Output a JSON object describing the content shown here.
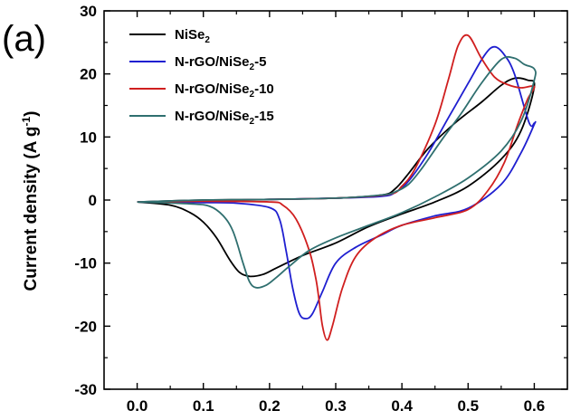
{
  "chart_data": {
    "type": "line",
    "panel_label": "(a)",
    "xlabel": "",
    "ylabel": {
      "main": "Current density (A g",
      "superscript": "-1",
      "close": ")"
    },
    "xlim": [
      -0.05,
      0.65
    ],
    "ylim": [
      -30,
      30
    ],
    "x_ticks": [
      "0.0",
      "0.1",
      "0.2",
      "0.3",
      "0.4",
      "0.5",
      "0.6"
    ],
    "x_tick_values": [
      0.0,
      0.1,
      0.2,
      0.3,
      0.4,
      0.5,
      0.6
    ],
    "y_ticks": [
      "-30",
      "-20",
      "-10",
      "0",
      "10",
      "20",
      "30"
    ],
    "y_tick_values": [
      -30,
      -20,
      -10,
      0,
      10,
      20,
      30
    ],
    "grid": false,
    "legend_position": "top-left",
    "series": [
      {
        "name": "NiSe2",
        "legend": {
          "base": "NiSe",
          "sub": "2",
          "suffix": ""
        },
        "color": "#000000",
        "points": [
          [
            0,
            -0.3
          ],
          [
            0.05,
            -0.8
          ],
          [
            0.08,
            -2
          ],
          [
            0.1,
            -3.5
          ],
          [
            0.12,
            -6
          ],
          [
            0.14,
            -9.5
          ],
          [
            0.155,
            -11.5
          ],
          [
            0.17,
            -12.1
          ],
          [
            0.19,
            -11.8
          ],
          [
            0.21,
            -10.8
          ],
          [
            0.25,
            -8.8
          ],
          [
            0.3,
            -6.8
          ],
          [
            0.35,
            -4.2
          ],
          [
            0.4,
            -2.2
          ],
          [
            0.45,
            -0.3
          ],
          [
            0.5,
            2.2
          ],
          [
            0.55,
            6.5
          ],
          [
            0.58,
            11
          ],
          [
            0.6,
            18
          ],
          [
            0.59,
            19
          ],
          [
            0.57,
            19.3
          ],
          [
            0.55,
            18.2
          ],
          [
            0.52,
            15.5
          ],
          [
            0.48,
            12.2
          ],
          [
            0.44,
            8.2
          ],
          [
            0.41,
            4.2
          ],
          [
            0.39,
            1.8
          ],
          [
            0.37,
            0.8
          ],
          [
            0.3,
            0.3
          ],
          [
            0.2,
            0.1
          ],
          [
            0.1,
            0
          ],
          [
            0,
            -0.3
          ]
        ]
      },
      {
        "name": "N-rGO/NiSe2-5",
        "legend": {
          "base": "N-rGO/NiSe",
          "sub": "2",
          "suffix": "-5"
        },
        "color": "#1f1fd0",
        "points": [
          [
            0,
            -0.3
          ],
          [
            0.1,
            -0.4
          ],
          [
            0.15,
            -0.5
          ],
          [
            0.2,
            -1.2
          ],
          [
            0.215,
            -3
          ],
          [
            0.225,
            -8
          ],
          [
            0.235,
            -14
          ],
          [
            0.245,
            -18
          ],
          [
            0.255,
            -18.8
          ],
          [
            0.265,
            -18
          ],
          [
            0.28,
            -14.5
          ],
          [
            0.3,
            -10
          ],
          [
            0.33,
            -7.5
          ],
          [
            0.37,
            -5.5
          ],
          [
            0.4,
            -4
          ],
          [
            0.45,
            -2.5
          ],
          [
            0.5,
            -1.3
          ],
          [
            0.55,
            2.5
          ],
          [
            0.58,
            7.5
          ],
          [
            0.6,
            12
          ],
          [
            0.6,
            12.2
          ],
          [
            0.592,
            12.3
          ],
          [
            0.57,
            20
          ],
          [
            0.555,
            23
          ],
          [
            0.54,
            24.3
          ],
          [
            0.525,
            23
          ],
          [
            0.5,
            18.5
          ],
          [
            0.47,
            13
          ],
          [
            0.44,
            7.5
          ],
          [
            0.41,
            3
          ],
          [
            0.39,
            1.2
          ],
          [
            0.37,
            0.6
          ],
          [
            0.3,
            0.3
          ],
          [
            0.2,
            0.1
          ],
          [
            0.1,
            -0.1
          ],
          [
            0,
            -0.3
          ]
        ]
      },
      {
        "name": "N-rGO/NiSe2-10",
        "legend": {
          "base": "N-rGO/NiSe",
          "sub": "2",
          "suffix": "-10"
        },
        "color": "#d01f1f",
        "points": [
          [
            0,
            -0.3
          ],
          [
            0.1,
            -0.2
          ],
          [
            0.2,
            -0.3
          ],
          [
            0.22,
            -0.8
          ],
          [
            0.24,
            -3
          ],
          [
            0.26,
            -8
          ],
          [
            0.27,
            -12.5
          ],
          [
            0.275,
            -16
          ],
          [
            0.28,
            -20
          ],
          [
            0.287,
            -22.2
          ],
          [
            0.295,
            -20
          ],
          [
            0.31,
            -14
          ],
          [
            0.33,
            -9
          ],
          [
            0.36,
            -6
          ],
          [
            0.4,
            -4
          ],
          [
            0.45,
            -2.8
          ],
          [
            0.5,
            -1.5
          ],
          [
            0.53,
            1.5
          ],
          [
            0.555,
            6
          ],
          [
            0.575,
            12
          ],
          [
            0.59,
            16
          ],
          [
            0.6,
            18
          ],
          [
            0.58,
            17.8
          ],
          [
            0.56,
            18.3
          ],
          [
            0.54,
            19.5
          ],
          [
            0.52,
            22.5
          ],
          [
            0.5,
            26.1
          ],
          [
            0.485,
            24.5
          ],
          [
            0.47,
            19
          ],
          [
            0.45,
            12
          ],
          [
            0.42,
            5
          ],
          [
            0.4,
            2.2
          ],
          [
            0.38,
            0.9
          ],
          [
            0.3,
            0.3
          ],
          [
            0.2,
            0.1
          ],
          [
            0.1,
            -0.1
          ],
          [
            0,
            -0.3
          ]
        ]
      },
      {
        "name": "N-rGO/NiSe2-15",
        "legend": {
          "base": "N-rGO/NiSe",
          "sub": "2",
          "suffix": "-15"
        },
        "color": "#2f6f6f",
        "points": [
          [
            0,
            -0.3
          ],
          [
            0.08,
            -0.6
          ],
          [
            0.11,
            -1
          ],
          [
            0.13,
            -2.5
          ],
          [
            0.145,
            -5
          ],
          [
            0.16,
            -10
          ],
          [
            0.17,
            -13
          ],
          [
            0.18,
            -13.9
          ],
          [
            0.195,
            -13.5
          ],
          [
            0.21,
            -12.3
          ],
          [
            0.23,
            -10.5
          ],
          [
            0.26,
            -8
          ],
          [
            0.3,
            -6
          ],
          [
            0.35,
            -4
          ],
          [
            0.4,
            -2
          ],
          [
            0.45,
            0.5
          ],
          [
            0.5,
            3.5
          ],
          [
            0.55,
            7.8
          ],
          [
            0.58,
            12.5
          ],
          [
            0.6,
            19
          ],
          [
            0.6,
            20.8
          ],
          [
            0.585,
            21.5
          ],
          [
            0.57,
            22.5
          ],
          [
            0.55,
            22.3
          ],
          [
            0.52,
            18.5
          ],
          [
            0.49,
            13.8
          ],
          [
            0.46,
            9.5
          ],
          [
            0.43,
            5
          ],
          [
            0.41,
            2.5
          ],
          [
            0.39,
            1.3
          ],
          [
            0.37,
            0.8
          ],
          [
            0.3,
            0.3
          ],
          [
            0.2,
            0.1
          ],
          [
            0.1,
            0
          ],
          [
            0,
            -0.3
          ]
        ]
      }
    ]
  }
}
